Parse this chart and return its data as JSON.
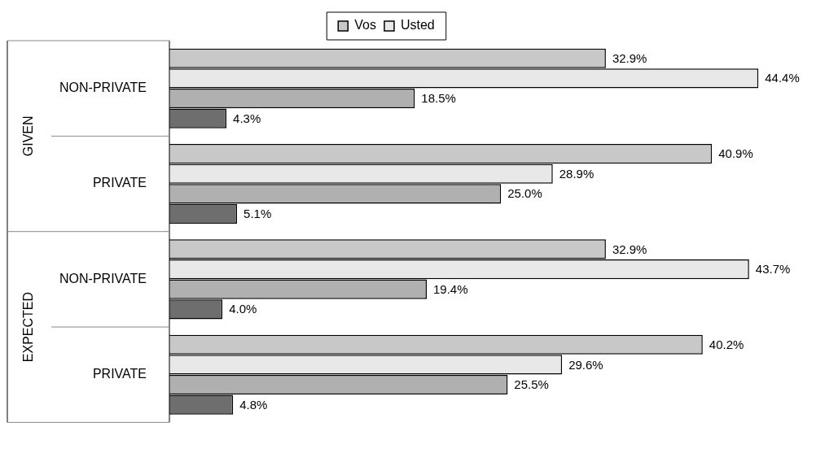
{
  "chart_data": {
    "type": "bar",
    "orientation": "horizontal",
    "categories": [
      "NON-PRIVATE",
      "PRIVATE",
      "NON-PRIVATE",
      "PRIVATE"
    ],
    "annotations": [
      "GIVEN",
      "EXPECTED"
    ],
    "tick_labels": "y",
    "grid": false,
    "legend": "top",
    "series": [
      {
        "name": "Vos",
        "color": "#c8c8c8",
        "values": [
          32.9,
          40.9,
          32.9,
          40.2
        ],
        "value_labels": [
          "32.9%",
          "40.9%",
          "32.9%",
          "40.2%"
        ]
      },
      {
        "name": "Usted",
        "color": "#e8e8e8",
        "values": [
          44.4,
          28.9,
          43.7,
          29.6
        ],
        "value_labels": [
          "44.4%",
          "28.9%",
          "43.7%",
          "29.6%"
        ]
      },
      {
        "color": "#b0b0b0",
        "values": [
          18.5,
          25.0,
          19.4,
          25.5
        ],
        "value_labels": [
          "18.5%",
          "25.0%",
          "19.4%",
          "25.5%"
        ]
      },
      {
        "color": "#6e6e6e",
        "values": [
          4.3,
          5.1,
          4.0,
          4.8
        ],
        "value_labels": [
          "4.3%",
          "5.1%",
          "4.0%",
          "4.8%"
        ]
      }
    ]
  }
}
